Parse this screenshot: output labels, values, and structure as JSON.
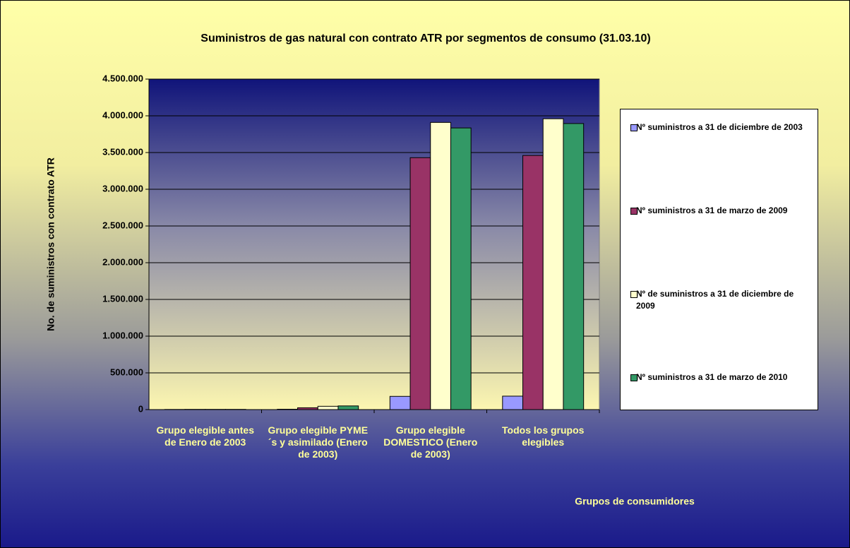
{
  "chart_data": {
    "type": "bar",
    "title": "Suministros de gas natural con contrato ATR por segmentos de consumo (31.03.10)",
    "x_label": "Grupos de consumidores",
    "y_label": "No. de suministros con contrato ATR",
    "categories": [
      "Grupo elegible antes de Enero de 2003",
      "Grupo elegible PYME´s y asimilado (Enero de 2003)",
      "Grupo elegible DOMESTICO (Enero de 2003)",
      "Todos los grupos elegibles"
    ],
    "series": [
      {
        "name": "Nº suministros a 31 de diciembre de 2003",
        "color": "#9999ff",
        "values": [
          2000,
          5000,
          180000,
          183000
        ]
      },
      {
        "name": "Nº suministros a 31 de marzo de 2009",
        "color": "#993366",
        "values": [
          3000,
          25000,
          3430000,
          3460000
        ]
      },
      {
        "name": "Nº de suministros a 31 de diciembre de 2009",
        "color": "#ffffcc",
        "values": [
          3000,
          45000,
          3910000,
          3960000
        ]
      },
      {
        "name": "Nº suministros a 31 de marzo de 2010",
        "color": "#339966",
        "values": [
          3000,
          50000,
          3835000,
          3895000
        ]
      }
    ],
    "ylim": [
      0,
      4500000
    ],
    "yticks": [
      0,
      {
        "value": 500000,
        "label": "500.000"
      },
      {
        "value": 1000000,
        "label": "1.000.000"
      },
      {
        "value": 1500000,
        "label": "1.500.000"
      },
      {
        "value": 2000000,
        "label": "2.000.000"
      },
      {
        "value": 2500000,
        "label": "2.500.000"
      },
      {
        "value": 3000000,
        "label": "3.000.000"
      },
      {
        "value": 3500000,
        "label": "3.500.000"
      },
      {
        "value": 4000000,
        "label": "4.000.000"
      },
      {
        "value": 4500000,
        "label": "4.500.000"
      }
    ],
    "grid": true
  }
}
